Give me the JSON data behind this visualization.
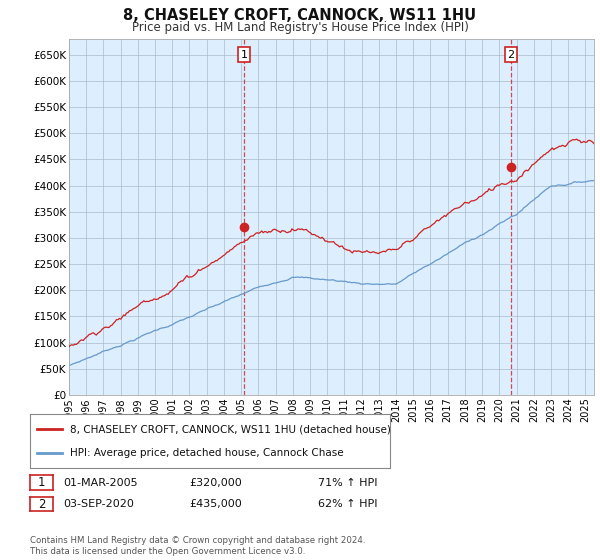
{
  "title": "8, CHASELEY CROFT, CANNOCK, WS11 1HU",
  "subtitle": "Price paid vs. HM Land Registry's House Price Index (HPI)",
  "legend_line1": "8, CHASELEY CROFT, CANNOCK, WS11 1HU (detached house)",
  "legend_line2": "HPI: Average price, detached house, Cannock Chase",
  "transaction1_date": "01-MAR-2005",
  "transaction1_price": "£320,000",
  "transaction1_hpi": "71% ↑ HPI",
  "transaction2_date": "03-SEP-2020",
  "transaction2_price": "£435,000",
  "transaction2_hpi": "62% ↑ HPI",
  "footer": "Contains HM Land Registry data © Crown copyright and database right 2024.\nThis data is licensed under the Open Government Licence v3.0.",
  "line1_color": "#cc2222",
  "line2_color": "#6699cc",
  "chart_bg_color": "#ddeeff",
  "grid_color": "#aabbcc",
  "background_color": "#ffffff",
  "point1_x": 2005.17,
  "point1_y": 320000,
  "point2_x": 2020.67,
  "point2_y": 435000,
  "ylim": [
    0,
    680000
  ],
  "xlim_start": 1995.0,
  "xlim_end": 2025.5
}
